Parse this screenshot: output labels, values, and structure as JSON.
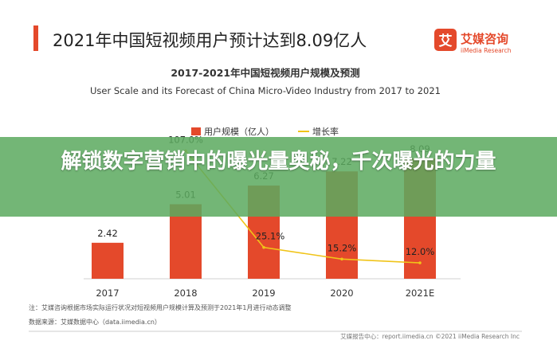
{
  "header": {
    "title": "2021年中国短视频用户预计达到8.09亿人",
    "brand_name": "艾媒咨询",
    "brand_sub": "iiMedia Research",
    "brand_mark": "艾"
  },
  "chart_data": {
    "type": "bar",
    "title": "2017-2021年中国短视频用户规模及预测",
    "subtitle": "User Scale and its Forecast of China Micro-Video Industry from 2017 to 2021",
    "categories": [
      "2017",
      "2018",
      "2019",
      "2020",
      "2021E"
    ],
    "series": [
      {
        "name": "用户规模（亿人）",
        "type": "bar",
        "values": [
          2.42,
          5.01,
          6.27,
          7.22,
          8.09
        ],
        "labels": [
          "2.42",
          "5.01",
          "6.27",
          "7.22",
          "8.09"
        ]
      },
      {
        "name": "增长率",
        "type": "line",
        "values": [
          null,
          107.0,
          25.1,
          15.2,
          12.0
        ],
        "labels": [
          "",
          "107.0%",
          "25.1%",
          "15.2%",
          "12.0%"
        ]
      }
    ],
    "ylim": [
      0,
      9
    ],
    "legend": "top-center",
    "colors": {
      "bar": "#e4492b",
      "line": "#f0c419"
    }
  },
  "footer": {
    "note": "注：艾媒咨询根据市场实际运行状况对短视频用户规模计算及预测于2021年1月进行动态调整",
    "source": "数据来源：艾媒数据中心（data.iimedia.cn）",
    "report": "艾媒报告中心：report.iimedia.cn  ©2021  iiMedia Research  Inc"
  },
  "overlay": {
    "banner_text": "解锁数字营销中的曝光量奥秘，千次曝光的力量",
    "color": "#5caa60"
  }
}
